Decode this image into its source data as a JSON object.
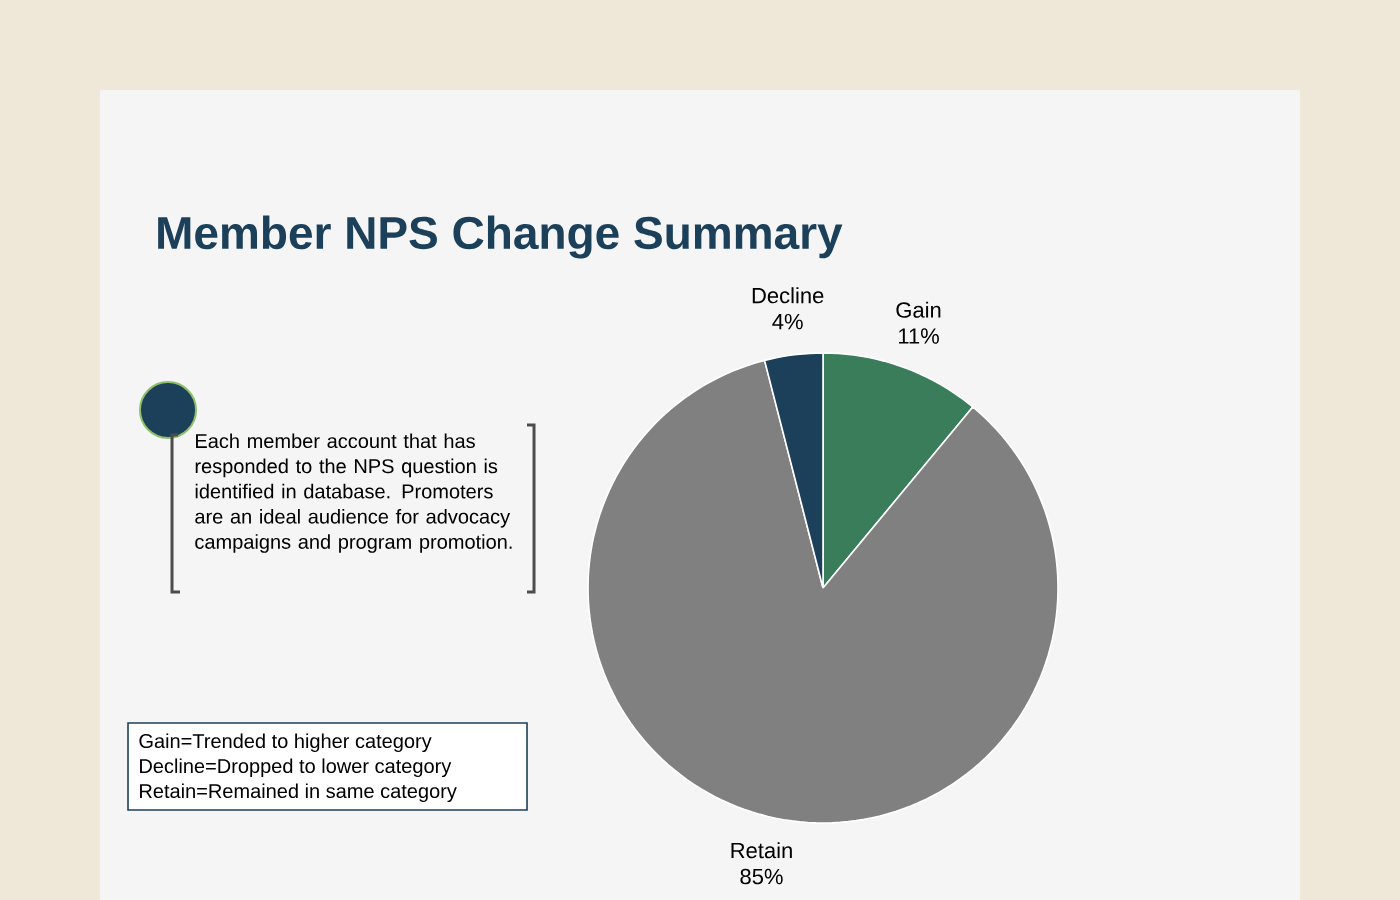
{
  "chart_data": {
    "type": "pie",
    "title": "Member NPS Change Summary",
    "categories": [
      "Gain",
      "Retain",
      "Decline"
    ],
    "values": [
      11,
      85,
      4
    ],
    "colors": [
      "#3a7d5a",
      "#808080",
      "#1c4059"
    ],
    "value_labels": [
      "11%",
      "85%",
      "4%"
    ],
    "annotations": [
      "Each member account that has responded to the NPS question is identified in database. Promoters are an ideal audience for advocacy campaigns and program promotion.",
      "Gain=Trended to higher category",
      "Decline=Dropped to lower category",
      "Retain=Remained in same category"
    ]
  }
}
